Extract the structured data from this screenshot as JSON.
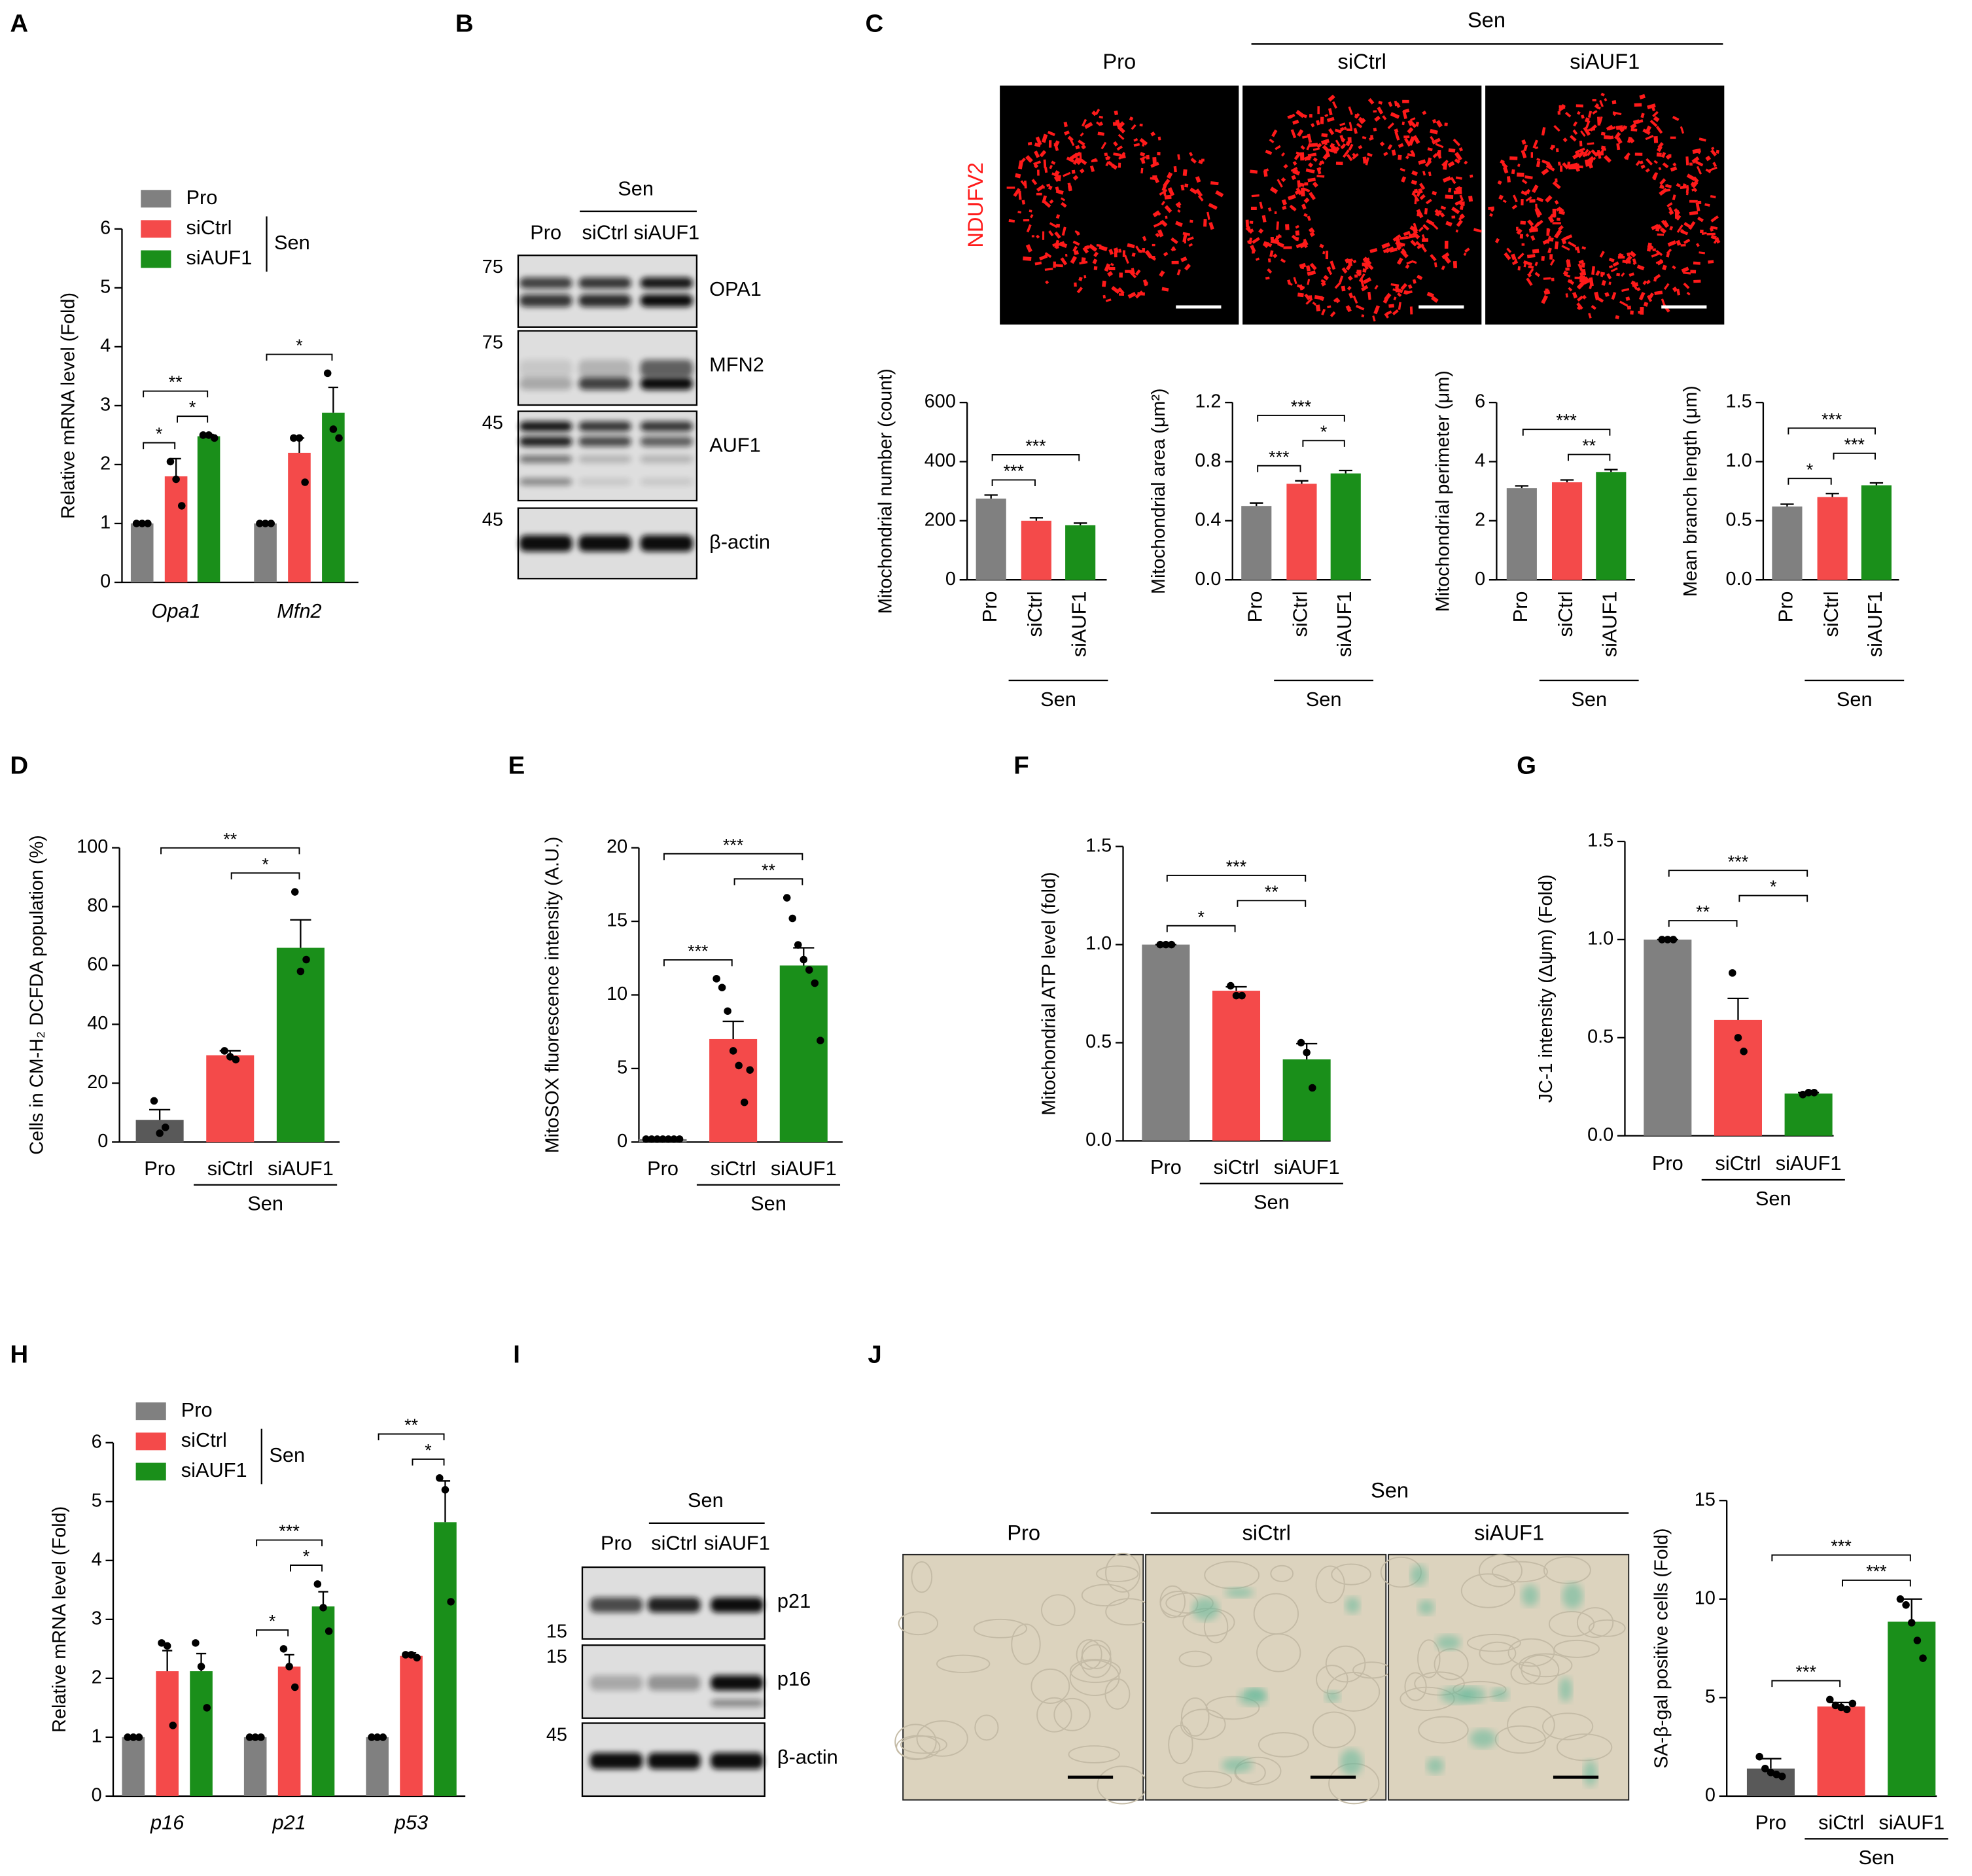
{
  "panels": [
    "A",
    "B",
    "C",
    "D",
    "E",
    "F",
    "G",
    "H",
    "I",
    "J"
  ],
  "blots": [
    {
      "sen": "Sen",
      "lanes": [
        "Pro",
        "siCtrl",
        "siAUF1"
      ],
      "rows": [
        {
          "protein": "OPA1",
          "marker": 75
        },
        {
          "protein": "MFN2",
          "marker": 75
        },
        {
          "protein": "AUF1",
          "marker": 45
        },
        {
          "protein": "β-actin",
          "marker": 45
        }
      ]
    },
    {
      "sen": "Sen",
      "lanes": [
        "Pro",
        "siCtrl",
        "siAUF1"
      ],
      "rows": [
        {
          "protein": "p21",
          "marker": 15
        },
        {
          "protein": "p16",
          "marker": 15
        },
        {
          "protein": "β-actin",
          "marker": 45
        }
      ]
    }
  ],
  "micrographs": [
    {
      "stain": "NDUFV2",
      "sen": "Sen",
      "conditions": [
        "Pro",
        "siCtrl",
        "siAUF1"
      ]
    },
    {
      "sen": "Sen",
      "conditions": [
        "Pro",
        "siCtrl",
        "siAUF1"
      ]
    }
  ],
  "chart_data": [
    {
      "type": "grouped_bar",
      "categories": [
        "Opa1",
        "Mfn2"
      ],
      "ylabel": "Relative mRNA level (Fold)",
      "ylim": [
        0,
        6
      ],
      "yticks": [
        0,
        1,
        2,
        3,
        4,
        5,
        6
      ],
      "legend_group_label": "Sen",
      "series": [
        {
          "name": "Pro",
          "color": "#808080",
          "values": [
            1,
            1
          ],
          "errors": [
            0,
            0
          ],
          "points": [
            [
              1,
              1,
              1
            ],
            [
              1,
              1,
              1
            ]
          ]
        },
        {
          "name": "siCtrl",
          "color": "#f44a4a",
          "values": [
            1.8,
            2.2
          ],
          "errors": [
            0.3,
            0.25
          ],
          "points": [
            [
              2.05,
              1.75,
              1.3
            ],
            [
              2.45,
              2.45,
              1.7
            ]
          ]
        },
        {
          "name": "siAUF1",
          "color": "#1a8f1a",
          "values": [
            2.48,
            2.88
          ],
          "errors": [
            0.03,
            0.43
          ],
          "points": [
            [
              2.5,
              2.5,
              2.45
            ],
            [
              3.55,
              2.6,
              2.45
            ]
          ]
        }
      ],
      "significance": [
        {
          "category": 0,
          "from": 0,
          "to": 1,
          "label": "*"
        },
        {
          "category": 0,
          "from": 1,
          "to": 2,
          "label": "*"
        },
        {
          "category": 0,
          "from": 0,
          "to": 2,
          "label": "**"
        },
        {
          "category": 1,
          "from": 0,
          "to": 2,
          "label": "*"
        }
      ]
    },
    {
      "type": "bar",
      "categories": [
        "Pro",
        "siCtrl",
        "siAUF1"
      ],
      "colors": [
        "#808080",
        "#f44a4a",
        "#1a8f1a"
      ],
      "ylabel": "Mitochondrial number (count)",
      "ylim": [
        0,
        600
      ],
      "yticks": [
        0,
        200,
        400,
        600
      ],
      "values": [
        275,
        200,
        185
      ],
      "errors": [
        12,
        10,
        7
      ],
      "group_label": "Sen",
      "significance": [
        {
          "from": 0,
          "to": 1,
          "label": "***"
        },
        {
          "from": 0,
          "to": 2,
          "label": "***"
        }
      ]
    },
    {
      "type": "bar",
      "categories": [
        "Pro",
        "siCtrl",
        "siAUF1"
      ],
      "colors": [
        "#808080",
        "#f44a4a",
        "#1a8f1a"
      ],
      "ylabel": "Mitochondrial area (μm²)",
      "ylim": [
        0,
        1.2
      ],
      "yticks": [
        {
          "value": 0,
          "label": "0.0"
        },
        0.4,
        0.8,
        1.2
      ],
      "values": [
        0.5,
        0.65,
        0.72
      ],
      "errors": [
        0.02,
        0.02,
        0.02
      ],
      "group_label": "Sen",
      "significance": [
        {
          "from": 0,
          "to": 1,
          "label": "***"
        },
        {
          "from": 1,
          "to": 2,
          "label": "*"
        },
        {
          "from": 0,
          "to": 2,
          "label": "***"
        }
      ]
    },
    {
      "type": "bar",
      "categories": [
        "Pro",
        "siCtrl",
        "siAUF1"
      ],
      "colors": [
        "#808080",
        "#f44a4a",
        "#1a8f1a"
      ],
      "ylabel": "Mitochondrial perimeter (μm)",
      "ylim": [
        0,
        6
      ],
      "yticks": [
        0,
        2,
        4,
        6
      ],
      "values": [
        3.1,
        3.3,
        3.65
      ],
      "errors": [
        0.08,
        0.08,
        0.08
      ],
      "group_label": "Sen",
      "significance": [
        {
          "from": 1,
          "to": 2,
          "label": "**"
        },
        {
          "from": 0,
          "to": 2,
          "label": "***"
        }
      ]
    },
    {
      "type": "bar",
      "categories": [
        "Pro",
        "siCtrl",
        "siAUF1"
      ],
      "colors": [
        "#808080",
        "#f44a4a",
        "#1a8f1a"
      ],
      "ylabel": "Mean branch length (μm)",
      "ylim": [
        0,
        1.5
      ],
      "yticks": [
        {
          "value": 0,
          "label": "0.0"
        },
        0.5,
        {
          "value": 1,
          "label": "1.0"
        },
        1.5
      ],
      "values": [
        0.62,
        0.7,
        0.8
      ],
      "errors": [
        0.02,
        0.03,
        0.02
      ],
      "group_label": "Sen",
      "significance": [
        {
          "from": 0,
          "to": 1,
          "label": "*"
        },
        {
          "from": 1,
          "to": 2,
          "label": "***"
        },
        {
          "from": 0,
          "to": 2,
          "label": "***"
        }
      ]
    },
    {
      "type": "bar",
      "categories": [
        "Pro",
        "siCtrl",
        "siAUF1"
      ],
      "colors": [
        "#595959",
        "#f44a4a",
        "#1a8f1a"
      ],
      "ylabel": "Cells in CM-H₂ DCFDA population (%)",
      "ylim": [
        0,
        100
      ],
      "yticks": [
        0,
        20,
        40,
        60,
        80,
        100
      ],
      "values": [
        7.5,
        29.5,
        66
      ],
      "errors": [
        3.5,
        1.5,
        9.5
      ],
      "points": [
        [
          14,
          3,
          5
        ],
        [
          31,
          29,
          28
        ],
        [
          85,
          58,
          62
        ]
      ],
      "group_label": "Sen",
      "significance": [
        {
          "from": 1,
          "to": 2,
          "label": "*"
        },
        {
          "from": 0,
          "to": 2,
          "label": "**"
        }
      ]
    },
    {
      "type": "bar",
      "categories": [
        "Pro",
        "siCtrl",
        "siAUF1"
      ],
      "colors": [
        "#808080",
        "#f44a4a",
        "#1a8f1a"
      ],
      "ylabel": "MitoSOX fluorescence intensity (A.U.)",
      "ylim": [
        0,
        20
      ],
      "yticks": [
        0,
        5,
        10,
        15,
        20
      ],
      "values": [
        0.2,
        7,
        12
      ],
      "errors": [
        0.05,
        1.2,
        1.2
      ],
      "points": [
        [
          0.2,
          0.2,
          0.2,
          0.2,
          0.2,
          0.2,
          0.2
        ],
        [
          11.1,
          10.5,
          8.9,
          6.2,
          5.2,
          2.7,
          4.9
        ],
        [
          16.6,
          15.2,
          13.4,
          12.4,
          11.7,
          10.8,
          6.9
        ]
      ],
      "group_label": "Sen",
      "significance": [
        {
          "from": 0,
          "to": 1,
          "label": "***"
        },
        {
          "from": 1,
          "to": 2,
          "label": "**"
        },
        {
          "from": 0,
          "to": 2,
          "label": "***"
        }
      ]
    },
    {
      "type": "bar",
      "categories": [
        "Pro",
        "siCtrl",
        "siAUF1"
      ],
      "colors": [
        "#808080",
        "#f44a4a",
        "#1a8f1a"
      ],
      "ylabel": "Mitochondrial ATP level (fold)",
      "ylim": [
        0,
        1.5
      ],
      "yticks": [
        {
          "value": 0,
          "label": "0.0"
        },
        0.5,
        {
          "value": 1,
          "label": "1.0"
        },
        1.5
      ],
      "values": [
        1.0,
        0.765,
        0.415
      ],
      "errors": [
        0,
        0.02,
        0.08
      ],
      "points": [
        [
          1,
          1,
          1
        ],
        [
          0.79,
          0.74,
          0.74
        ],
        [
          0.5,
          0.45,
          0.27
        ]
      ],
      "group_label": "Sen",
      "significance": [
        {
          "from": 0,
          "to": 1,
          "label": "*"
        },
        {
          "from": 1,
          "to": 2,
          "label": "**"
        },
        {
          "from": 0,
          "to": 2,
          "label": "***"
        }
      ]
    },
    {
      "type": "bar",
      "categories": [
        "Pro",
        "siCtrl",
        "siAUF1"
      ],
      "colors": [
        "#808080",
        "#f44a4a",
        "#1a8f1a"
      ],
      "ylabel": "JC-1 intensity (Δψm) (Fold)",
      "ylim": [
        0,
        1.5
      ],
      "yticks": [
        {
          "value": 0,
          "label": "0.0"
        },
        0.5,
        {
          "value": 1,
          "label": "1.0"
        },
        1.5
      ],
      "values": [
        1.0,
        0.59,
        0.215
      ],
      "errors": [
        0,
        0.11,
        0.005
      ],
      "points": [
        [
          1,
          1,
          1
        ],
        [
          0.83,
          0.5,
          0.43
        ],
        [
          0.21,
          0.22,
          0.22
        ]
      ],
      "group_label": "Sen",
      "significance": [
        {
          "from": 0,
          "to": 1,
          "label": "**"
        },
        {
          "from": 1,
          "to": 2,
          "label": "*"
        },
        {
          "from": 0,
          "to": 2,
          "label": "***"
        }
      ]
    },
    {
      "type": "grouped_bar",
      "categories": [
        "p16",
        "p21",
        "p53"
      ],
      "ylabel": "Relative mRNA level (Fold)",
      "ylim": [
        0,
        6
      ],
      "yticks": [
        0,
        1,
        2,
        3,
        4,
        5,
        6
      ],
      "legend_group_label": "Sen",
      "series": [
        {
          "name": "Pro",
          "color": "#808080",
          "values": [
            1,
            1,
            1
          ],
          "errors": [
            0,
            0,
            0
          ],
          "points": [
            [
              1,
              1,
              1
            ],
            [
              1,
              1,
              1
            ],
            [
              1,
              1,
              1
            ]
          ]
        },
        {
          "name": "siCtrl",
          "color": "#f44a4a",
          "values": [
            2.12,
            2.2,
            2.38
          ],
          "errors": [
            0.35,
            0.2,
            0.05
          ],
          "points": [
            [
              2.6,
              2.55,
              1.2
            ],
            [
              2.5,
              2.2,
              1.85
            ],
            [
              2.4,
              2.4,
              2.35
            ]
          ]
        },
        {
          "name": "siAUF1",
          "color": "#1a8f1a",
          "values": [
            2.12,
            3.22,
            4.65
          ],
          "errors": [
            0.3,
            0.25,
            0.7
          ],
          "points": [
            [
              2.6,
              2.2,
              1.5
            ],
            [
              3.6,
              3.2,
              2.8
            ],
            [
              5.4,
              5.2,
              3.3
            ]
          ]
        }
      ],
      "significance": [
        {
          "category": 1,
          "from": 0,
          "to": 1,
          "label": "*"
        },
        {
          "category": 1,
          "from": 1,
          "to": 2,
          "label": "*"
        },
        {
          "category": 1,
          "from": 0,
          "to": 2,
          "label": "***"
        },
        {
          "category": 2,
          "from": 1,
          "to": 2,
          "label": "*"
        },
        {
          "category": 2,
          "from": 0,
          "to": 2,
          "label": "**"
        }
      ]
    },
    {
      "type": "bar",
      "categories": [
        "Pro",
        "siCtrl",
        "siAUF1"
      ],
      "colors": [
        "#595959",
        "#f44a4a",
        "#1a8f1a"
      ],
      "ylabel": "SA-β-gal positive cells (Fold)",
      "ylim": [
        0,
        15
      ],
      "yticks": [
        0,
        5,
        10,
        15
      ],
      "values": [
        1.4,
        4.55,
        8.85
      ],
      "errors": [
        0.5,
        0.2,
        1.15
      ],
      "points": [
        [
          2.0,
          1.4,
          1.2,
          1.1,
          1.0
        ],
        [
          4.9,
          4.6,
          4.5,
          4.4,
          4.7
        ],
        [
          10,
          9.7,
          8.8,
          7.9,
          7.0
        ]
      ],
      "group_label": "Sen",
      "significance": [
        {
          "from": 0,
          "to": 1,
          "label": "***"
        },
        {
          "from": 1,
          "to": 2,
          "label": "***"
        },
        {
          "from": 0,
          "to": 2,
          "label": "***"
        }
      ]
    }
  ]
}
